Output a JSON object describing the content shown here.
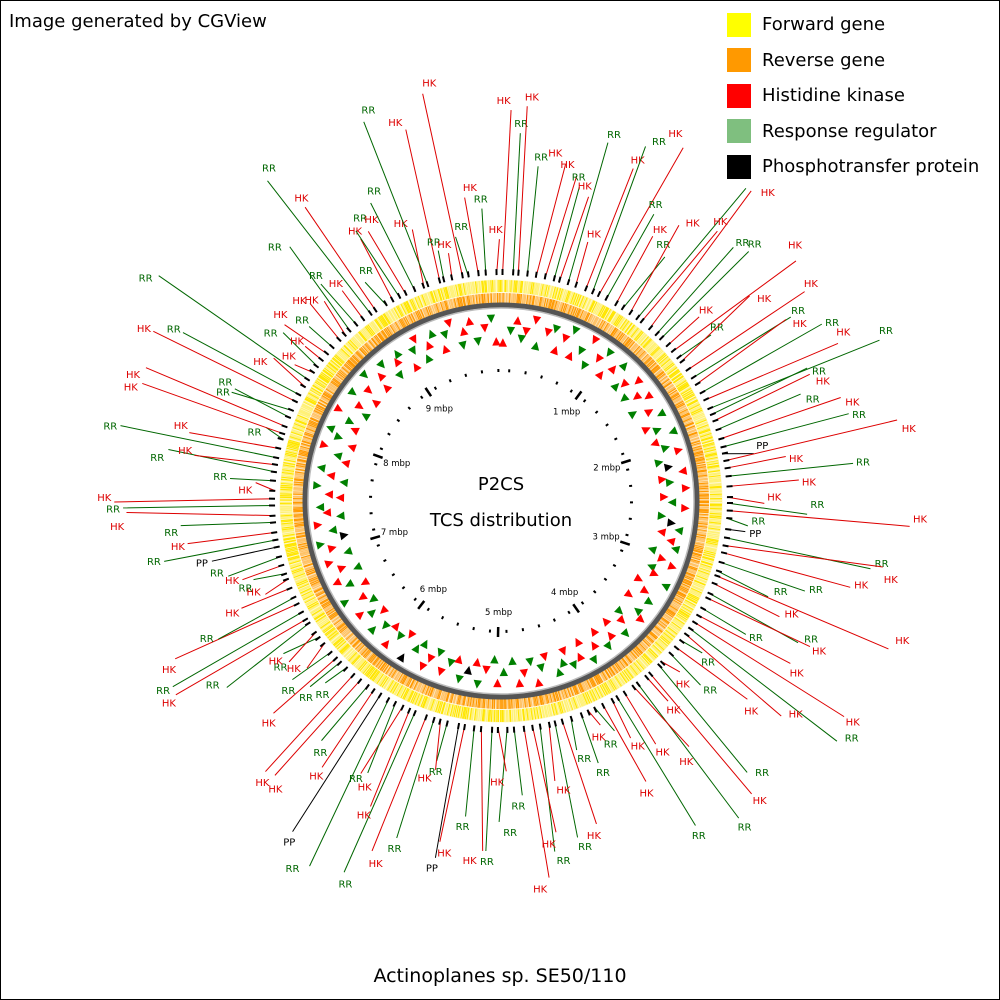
{
  "credit": "Image generated by CGView",
  "organism": "Actinoplanes sp. SE50/110",
  "center_title": [
    "P2CS",
    "TCS distribution"
  ],
  "legend": [
    {
      "label": "Forward gene",
      "color": "#ffff00"
    },
    {
      "label": "Reverse gene",
      "color": "#ff9900"
    },
    {
      "label": "Histidine kinase",
      "color": "#ff0000"
    },
    {
      "label": "Response regulator",
      "color": "#7fbf7f"
    },
    {
      "label": "Phosphotransfer protein",
      "color": "#000000"
    }
  ],
  "ticks": [
    "1 mbp",
    "2 mbp",
    "3 mbp",
    "4 mbp",
    "5 mbp",
    "6 mbp",
    "7 mbp",
    "8 mbp",
    "9 mbp"
  ],
  "feature_colors": {
    "HK": "#dd0000",
    "RR": "#006600",
    "PP": "#000000"
  },
  "feature_labels": [
    "HK",
    "RR",
    "HK",
    "RR",
    "HK",
    "HK",
    "RR",
    "HK",
    "RR",
    "HK",
    "HK",
    "RR",
    "HK",
    "RR",
    "HK",
    "RR",
    "HK",
    "RR",
    "HK",
    "HK",
    "RR",
    "RR",
    "HK",
    "HK",
    "RR",
    "HK",
    "HK",
    "RR",
    "HK",
    "RR",
    "HK",
    "RR",
    "RR",
    "HK",
    "RR",
    "HK",
    "RR",
    "PP",
    "HK",
    "HK",
    "RR",
    "HK",
    "HK",
    "RR",
    "HK",
    "RR",
    "PP",
    "RR",
    "HK",
    "HK",
    "RR",
    "RR",
    "HK",
    "HK",
    "RR",
    "HK",
    "RR",
    "HK",
    "HK",
    "RR",
    "HK",
    "RR",
    "HK",
    "RR",
    "HK",
    "RR",
    "HK",
    "HK",
    "RR",
    "HK",
    "HK",
    "RR",
    "HK",
    "HK",
    "RR",
    "HK",
    "RR",
    "RR",
    "HK",
    "RR",
    "HK",
    "RR",
    "HK",
    "HK",
    "RR",
    "RR",
    "HK",
    "RR",
    "HK",
    "RR",
    "HK",
    "PP",
    "RR",
    "HK",
    "RR",
    "HK",
    "RR",
    "HK",
    "HK",
    "RR",
    "RR",
    "PP",
    "HK",
    "RR",
    "HK",
    "HK",
    "RR",
    "RR",
    "HK",
    "RR",
    "HK",
    "RR",
    "HK",
    "RR",
    "HK",
    "RR",
    "HK",
    "RR",
    "HK",
    "HK",
    "RR",
    "HK",
    "RR",
    "PP",
    "RR",
    "HK",
    "RR",
    "HK",
    "RR",
    "HK",
    "HK",
    "RR",
    "RR",
    "HK",
    "RR",
    "HK",
    "RR",
    "HK",
    "HK",
    "RR",
    "RR",
    "HK",
    "RR",
    "HK",
    "RR",
    "HK",
    "RR",
    "HK",
    "HK",
    "RR",
    "HK",
    "HK",
    "RR",
    "RR",
    "HK",
    "RR",
    "HK",
    "RR",
    "HK",
    "RR",
    "HK",
    "RR",
    "HK",
    "RR",
    "HK",
    "RR",
    "HK",
    "HK",
    "RR",
    "HK",
    "RR",
    "HK"
  ]
}
